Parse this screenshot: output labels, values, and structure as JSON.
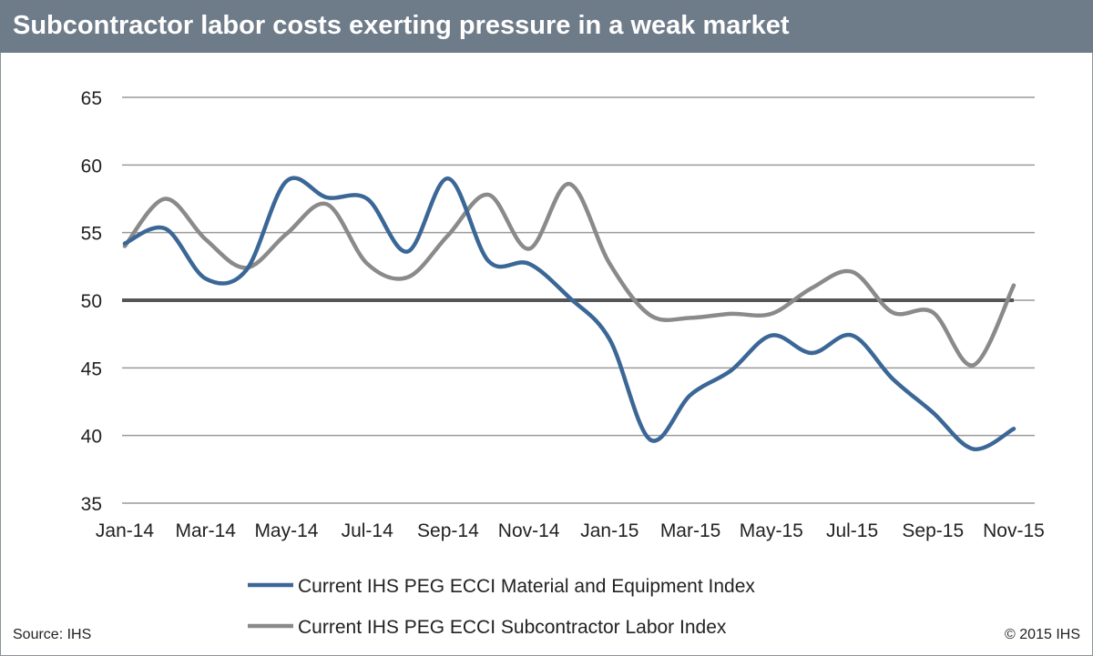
{
  "title": "Subcontractor labor costs exerting pressure in a weak market",
  "source": "Source: IHS",
  "copyright": "© 2015 IHS",
  "chart_data": {
    "type": "line",
    "title": "Subcontractor labor costs exerting pressure in a weak market",
    "x": [
      "Jan-14",
      "Feb-14",
      "Mar-14",
      "Apr-14",
      "May-14",
      "Jun-14",
      "Jul-14",
      "Aug-14",
      "Sep-14",
      "Oct-14",
      "Nov-14",
      "Dec-14",
      "Jan-15",
      "Feb-15",
      "Mar-15",
      "Apr-15",
      "May-15",
      "Jun-15",
      "Jul-15",
      "Aug-15",
      "Sep-15",
      "Oct-15",
      "Nov-15"
    ],
    "x_tick_labels": [
      "Jan-14",
      "Mar-14",
      "May-14",
      "Jul-14",
      "Sep-14",
      "Nov-14",
      "Jan-15",
      "Mar-15",
      "May-15",
      "Jul-15",
      "Sep-15",
      "Nov-15"
    ],
    "y_ticks": [
      35,
      40,
      45,
      50,
      55,
      60,
      65
    ],
    "ylim": [
      35,
      65
    ],
    "grid": true,
    "reference_line": 50,
    "legend_position": "bottom",
    "series": [
      {
        "name": "Current IHS PEG ECCI Material and Equipment Index",
        "color": "#3b6796",
        "values": [
          54.2,
          55.3,
          51.6,
          52.2,
          58.8,
          57.6,
          57.5,
          53.6,
          59.0,
          52.9,
          52.7,
          50.2,
          47.1,
          39.7,
          43.0,
          44.8,
          47.4,
          46.1,
          47.4,
          44.2,
          41.7,
          39.0,
          40.5
        ]
      },
      {
        "name": "Current IHS PEG ECCI Subcontractor Labor Index",
        "color": "#8a8a8a",
        "values": [
          54.0,
          57.5,
          54.5,
          52.4,
          54.9,
          57.1,
          52.7,
          51.7,
          54.8,
          57.8,
          53.8,
          58.6,
          52.7,
          48.9,
          48.7,
          49.0,
          49.0,
          50.9,
          52.1,
          49.1,
          49.1,
          45.2,
          51.1
        ]
      }
    ]
  }
}
